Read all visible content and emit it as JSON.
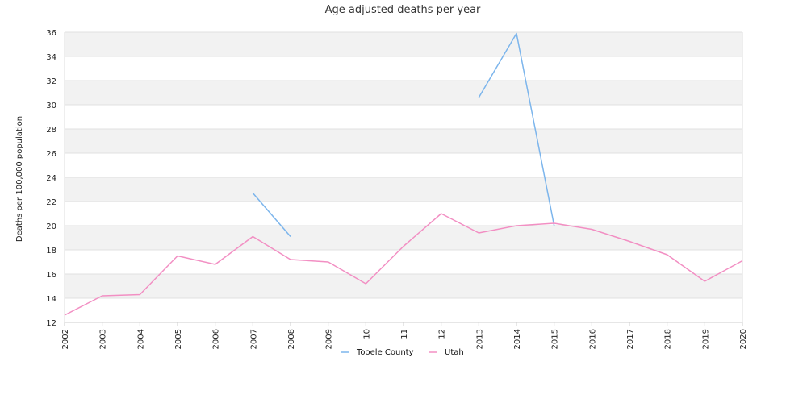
{
  "chart_data": {
    "type": "line",
    "title": "Age adjusted deaths per year",
    "xlabel": "",
    "ylabel": "Deaths per 100,000 population",
    "ylim": [
      12,
      36
    ],
    "yticks": [
      12,
      14,
      16,
      18,
      20,
      22,
      24,
      26,
      28,
      30,
      32,
      34,
      36
    ],
    "categories": [
      "2002",
      "2003",
      "2004",
      "2005",
      "2006",
      "2007",
      "2008",
      "2009",
      "10",
      "11",
      "12",
      "2013",
      "2014",
      "2015",
      "2016",
      "2017",
      "2018",
      "2019",
      "2020"
    ],
    "series": [
      {
        "name": "Tooele County",
        "color": "#7cb5ec",
        "values": [
          null,
          null,
          null,
          null,
          null,
          22.7,
          19.1,
          null,
          null,
          null,
          null,
          30.6,
          35.9,
          20.0,
          null,
          null,
          null,
          null,
          null
        ]
      },
      {
        "name": "Utah",
        "color": "#f28fc3",
        "values": [
          12.6,
          14.2,
          14.3,
          17.5,
          16.8,
          19.1,
          17.2,
          17.0,
          15.2,
          18.3,
          21.0,
          19.4,
          20.0,
          20.2,
          19.7,
          18.7,
          17.6,
          15.4,
          17.1
        ]
      }
    ],
    "grid": true,
    "legend_position": "bottom"
  }
}
